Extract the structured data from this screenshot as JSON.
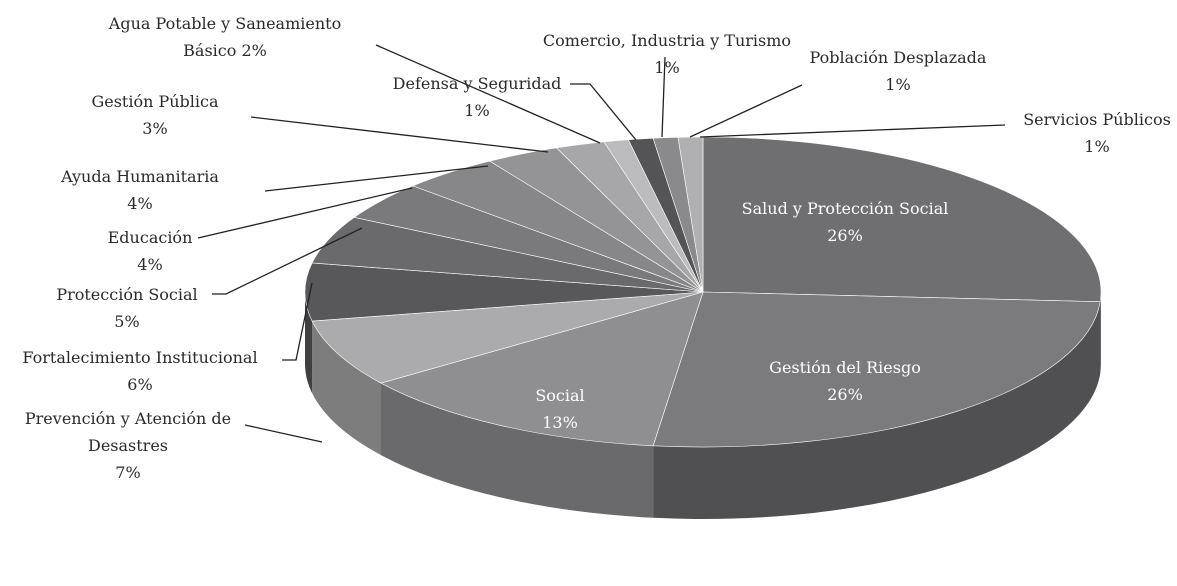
{
  "chart_data": {
    "type": "pie3d",
    "categories": [
      "Salud y Protección Social",
      "Gestión del Riesgo",
      "Social",
      "Prevención y Atención de Desastres",
      "Fortalecimiento Institucional",
      "Protección Social",
      "Educación",
      "Ayuda Humanitaria",
      "Gestión Pública",
      "Agua Potable y Saneamiento Básico",
      "Defensa y Seguridad",
      "Comercio, Industria y Turismo",
      "Población Desplazada",
      "Servicios Públicos"
    ],
    "values": [
      26,
      26,
      13,
      7,
      6,
      5,
      4,
      4,
      3,
      2,
      1,
      1,
      1,
      1
    ],
    "value_labels": [
      "26%",
      "26%",
      "13%",
      "7%",
      "6%",
      "5%",
      "4%",
      "4%",
      "3%",
      "2%",
      "1%",
      "1%",
      "1%",
      "1%"
    ],
    "colors": [
      "#6f6f71",
      "#7b7b7d",
      "#8f8f91",
      "#ababad",
      "#58585a",
      "#6a6a6c",
      "#7a7a7c",
      "#878789",
      "#949496",
      "#a7a7a9",
      "#bcbcbe",
      "#545456",
      "#8a8a8c",
      "#b0b0b2"
    ]
  }
}
